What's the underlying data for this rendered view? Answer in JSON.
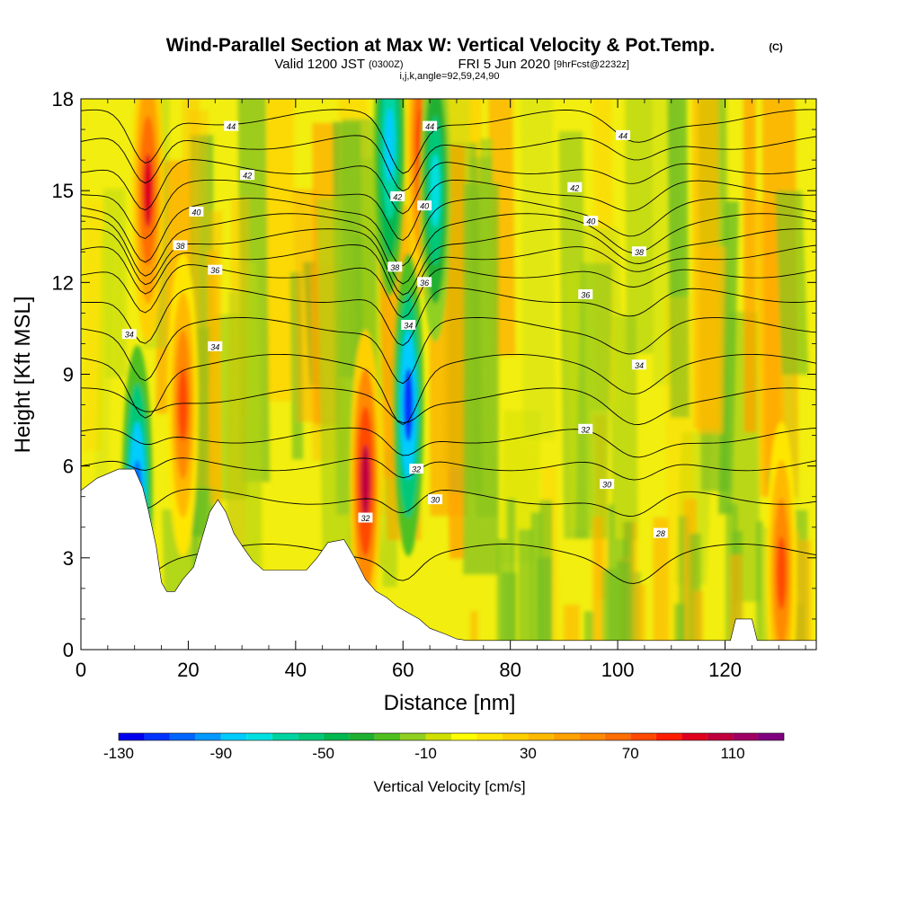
{
  "header": {
    "title_main": "Wind-Parallel Section at Max W: Vertical Velocity & Pot.Temp.",
    "title_mark": "(C)",
    "valid_prefix": "Valid 1200 JST",
    "valid_utc": "(0300Z)",
    "valid_date": "FRI 5 Jun 2020",
    "forecast_tag": "[9hrFcst@2232z]",
    "index_line": "i,j,k,angle=92,59,24,90"
  },
  "chart_data": {
    "type": "heatmap",
    "xlabel": "Distance [nm]",
    "ylabel": "Height [Kft MSL]",
    "xlim": [
      0,
      137
    ],
    "ylim": [
      0,
      18
    ],
    "x_ticks": [
      0,
      20,
      40,
      60,
      80,
      100,
      120
    ],
    "x_tick_labels": [
      "0",
      "20",
      "40",
      "60",
      "80",
      "100",
      "120"
    ],
    "y_ticks": [
      0,
      3,
      6,
      9,
      12,
      15,
      18
    ],
    "y_tick_labels": [
      "0",
      "3",
      "6",
      "9",
      "12",
      "15",
      "18"
    ],
    "colorbar": {
      "title": "Vertical Velocity [cm/s]",
      "range": [
        -130,
        130
      ],
      "step": 10,
      "tick_values": [
        -130,
        -90,
        -50,
        -10,
        30,
        70,
        110
      ],
      "tick_labels": [
        "-130",
        "-90",
        "-50",
        "-10",
        "30",
        "70",
        "110"
      ],
      "colors": [
        "#0000ee",
        "#0033ff",
        "#0066ff",
        "#0099ff",
        "#00ccff",
        "#00e0e0",
        "#00d4a0",
        "#00c878",
        "#00b850",
        "#20b030",
        "#50c020",
        "#90d020",
        "#d0e000",
        "#ffff00",
        "#ffe600",
        "#ffd000",
        "#ffba00",
        "#ffa200",
        "#ff8a00",
        "#ff6e00",
        "#ff4a00",
        "#ff1e00",
        "#e0001e",
        "#c0003c",
        "#a00064",
        "#800080"
      ]
    },
    "terrain_profile": [
      {
        "x": 0,
        "h": 5.2
      },
      {
        "x": 3,
        "h": 5.6
      },
      {
        "x": 7,
        "h": 5.9
      },
      {
        "x": 10,
        "h": 5.9
      },
      {
        "x": 11.5,
        "h": 5.3
      },
      {
        "x": 12.5,
        "h": 4.6
      },
      {
        "x": 14,
        "h": 3.4
      },
      {
        "x": 15,
        "h": 2.2
      },
      {
        "x": 16,
        "h": 1.9
      },
      {
        "x": 17.5,
        "h": 1.9
      },
      {
        "x": 19,
        "h": 2.3
      },
      {
        "x": 21,
        "h": 2.7
      },
      {
        "x": 22.5,
        "h": 3.6
      },
      {
        "x": 24,
        "h": 4.5
      },
      {
        "x": 25.5,
        "h": 4.9
      },
      {
        "x": 27,
        "h": 4.5
      },
      {
        "x": 28.5,
        "h": 3.8
      },
      {
        "x": 30,
        "h": 3.4
      },
      {
        "x": 32,
        "h": 2.9
      },
      {
        "x": 34,
        "h": 2.6
      },
      {
        "x": 42,
        "h": 2.6
      },
      {
        "x": 44,
        "h": 3.0
      },
      {
        "x": 46,
        "h": 3.5
      },
      {
        "x": 49,
        "h": 3.6
      },
      {
        "x": 51,
        "h": 3.0
      },
      {
        "x": 53,
        "h": 2.3
      },
      {
        "x": 55,
        "h": 1.9
      },
      {
        "x": 57,
        "h": 1.7
      },
      {
        "x": 59,
        "h": 1.4
      },
      {
        "x": 61,
        "h": 1.2
      },
      {
        "x": 63,
        "h": 1.0
      },
      {
        "x": 65,
        "h": 0.7
      },
      {
        "x": 68,
        "h": 0.5
      },
      {
        "x": 70,
        "h": 0.35
      },
      {
        "x": 72,
        "h": 0.3
      },
      {
        "x": 121,
        "h": 0.3
      },
      {
        "x": 122,
        "h": 1.0
      },
      {
        "x": 125,
        "h": 1.0
      },
      {
        "x": 126,
        "h": 0.3
      },
      {
        "x": 137,
        "h": 0.3
      }
    ],
    "updraft_cores": [
      {
        "x": 12.5,
        "y": 15.0,
        "w": 90
      },
      {
        "x": 19,
        "y": 8.0,
        "w": 75
      },
      {
        "x": 53,
        "y": 5.5,
        "w": 105
      },
      {
        "x": 63.5,
        "y": 16.5,
        "w": 85
      },
      {
        "x": 130.5,
        "y": 2.5,
        "w": 70
      }
    ],
    "downdraft_cores": [
      {
        "x": 10.5,
        "y": 5.0,
        "w": -110
      },
      {
        "x": 61,
        "y": 8.0,
        "w": -120
      },
      {
        "x": 57.5,
        "y": 16.5,
        "w": -90
      },
      {
        "x": 66,
        "y": 15.0,
        "w": -75
      }
    ],
    "potential_temperature_labels": [
      {
        "value": "44",
        "x": 28,
        "y": 17.1
      },
      {
        "value": "44",
        "x": 65,
        "y": 17.1
      },
      {
        "value": "44",
        "x": 101,
        "y": 16.8
      },
      {
        "value": "42",
        "x": 31,
        "y": 15.5
      },
      {
        "value": "42",
        "x": 59,
        "y": 14.8
      },
      {
        "value": "42",
        "x": 92,
        "y": 15.1
      },
      {
        "value": "40",
        "x": 21.5,
        "y": 14.3
      },
      {
        "value": "40",
        "x": 64,
        "y": 14.5
      },
      {
        "value": "40",
        "x": 95,
        "y": 14.0
      },
      {
        "value": "38",
        "x": 18.5,
        "y": 13.2
      },
      {
        "value": "38",
        "x": 58.5,
        "y": 12.5
      },
      {
        "value": "38",
        "x": 104,
        "y": 13.0
      },
      {
        "value": "36",
        "x": 25,
        "y": 12.4
      },
      {
        "value": "36",
        "x": 64,
        "y": 12.0
      },
      {
        "value": "36",
        "x": 94,
        "y": 11.6
      },
      {
        "value": "34",
        "x": 9,
        "y": 10.3
      },
      {
        "value": "34",
        "x": 25,
        "y": 9.9
      },
      {
        "value": "34",
        "x": 61,
        "y": 10.6
      },
      {
        "value": "34",
        "x": 104,
        "y": 9.3
      },
      {
        "value": "32",
        "x": 94,
        "y": 7.2
      },
      {
        "value": "32",
        "x": 62.5,
        "y": 5.9
      },
      {
        "value": "32",
        "x": 53,
        "y": 4.3
      },
      {
        "value": "30",
        "x": 66,
        "y": 4.9
      },
      {
        "value": "30",
        "x": 98,
        "y": 5.4
      },
      {
        "value": "28",
        "x": 108,
        "y": 3.8
      }
    ]
  }
}
